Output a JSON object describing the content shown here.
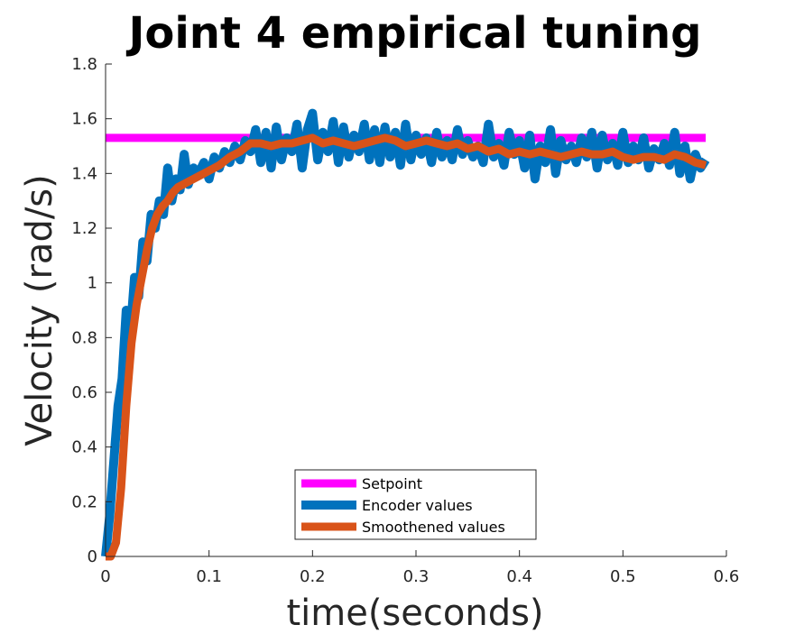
{
  "chart_data": {
    "type": "line",
    "title": "Joint 4 empirical tuning",
    "xlabel": "time(seconds)",
    "ylabel": "Velocity (rad/s)",
    "xlim": [
      0,
      0.6
    ],
    "ylim": [
      0,
      1.8
    ],
    "xticks": [
      0,
      0.1,
      0.2,
      0.3,
      0.4,
      0.5,
      0.6
    ],
    "xtick_labels": [
      "0",
      "0.1",
      "0.2",
      "0.3",
      "0.4",
      "0.5",
      "0.6"
    ],
    "yticks": [
      0,
      0.2,
      0.4,
      0.6,
      0.8,
      1.0,
      1.2,
      1.4,
      1.6,
      1.8
    ],
    "ytick_labels": [
      "0",
      "0.2",
      "0.4",
      "0.6",
      "0.8",
      "1",
      "1.2",
      "1.4",
      "1.6",
      "1.8"
    ],
    "grid": false,
    "legend": "bottom-center",
    "series": [
      {
        "name": "Setpoint",
        "color": "#ff00ff",
        "x": [
          0,
          0.58
        ],
        "y": [
          1.53,
          1.53
        ]
      },
      {
        "name": "Encoder values",
        "color": "#0072bd",
        "x": [
          0.0,
          0.004,
          0.008,
          0.012,
          0.016,
          0.02,
          0.024,
          0.028,
          0.032,
          0.036,
          0.04,
          0.044,
          0.048,
          0.052,
          0.056,
          0.06,
          0.064,
          0.068,
          0.072,
          0.076,
          0.08,
          0.085,
          0.09,
          0.095,
          0.1,
          0.105,
          0.11,
          0.115,
          0.12,
          0.125,
          0.13,
          0.135,
          0.14,
          0.145,
          0.15,
          0.155,
          0.16,
          0.165,
          0.17,
          0.175,
          0.18,
          0.185,
          0.19,
          0.195,
          0.2,
          0.205,
          0.21,
          0.215,
          0.22,
          0.225,
          0.23,
          0.235,
          0.24,
          0.245,
          0.25,
          0.255,
          0.26,
          0.265,
          0.27,
          0.275,
          0.28,
          0.285,
          0.29,
          0.295,
          0.3,
          0.305,
          0.31,
          0.315,
          0.32,
          0.325,
          0.33,
          0.335,
          0.34,
          0.345,
          0.35,
          0.355,
          0.36,
          0.365,
          0.37,
          0.375,
          0.38,
          0.385,
          0.39,
          0.395,
          0.4,
          0.405,
          0.41,
          0.415,
          0.42,
          0.425,
          0.43,
          0.435,
          0.44,
          0.445,
          0.45,
          0.455,
          0.46,
          0.465,
          0.47,
          0.475,
          0.48,
          0.485,
          0.49,
          0.495,
          0.5,
          0.505,
          0.51,
          0.515,
          0.52,
          0.525,
          0.53,
          0.535,
          0.54,
          0.545,
          0.55,
          0.555,
          0.56,
          0.565,
          0.57,
          0.575,
          0.58
        ],
        "y": [
          0.0,
          0.15,
          0.35,
          0.55,
          0.65,
          0.9,
          0.82,
          1.02,
          0.95,
          1.15,
          1.08,
          1.25,
          1.2,
          1.3,
          1.25,
          1.42,
          1.3,
          1.38,
          1.34,
          1.47,
          1.36,
          1.42,
          1.4,
          1.44,
          1.38,
          1.46,
          1.42,
          1.48,
          1.44,
          1.5,
          1.45,
          1.52,
          1.48,
          1.56,
          1.44,
          1.55,
          1.42,
          1.57,
          1.45,
          1.53,
          1.48,
          1.58,
          1.42,
          1.56,
          1.62,
          1.45,
          1.55,
          1.48,
          1.59,
          1.44,
          1.57,
          1.46,
          1.54,
          1.48,
          1.58,
          1.45,
          1.56,
          1.44,
          1.57,
          1.46,
          1.55,
          1.43,
          1.58,
          1.45,
          1.54,
          1.47,
          1.53,
          1.44,
          1.55,
          1.46,
          1.52,
          1.45,
          1.56,
          1.47,
          1.52,
          1.46,
          1.5,
          1.44,
          1.58,
          1.46,
          1.51,
          1.43,
          1.55,
          1.47,
          1.52,
          1.42,
          1.54,
          1.38,
          1.5,
          1.44,
          1.56,
          1.4,
          1.52,
          1.45,
          1.5,
          1.44,
          1.53,
          1.46,
          1.55,
          1.42,
          1.54,
          1.45,
          1.51,
          1.43,
          1.55,
          1.44,
          1.5,
          1.45,
          1.53,
          1.42,
          1.49,
          1.45,
          1.51,
          1.43,
          1.55,
          1.4,
          1.5,
          1.38,
          1.47,
          1.42,
          1.45
        ]
      },
      {
        "name": "Smoothened values",
        "color": "#d95319",
        "x": [
          0.0,
          0.005,
          0.01,
          0.015,
          0.02,
          0.025,
          0.03,
          0.035,
          0.04,
          0.045,
          0.05,
          0.055,
          0.06,
          0.065,
          0.07,
          0.075,
          0.08,
          0.09,
          0.1,
          0.11,
          0.12,
          0.13,
          0.14,
          0.15,
          0.16,
          0.17,
          0.18,
          0.19,
          0.2,
          0.21,
          0.22,
          0.23,
          0.24,
          0.25,
          0.26,
          0.27,
          0.28,
          0.29,
          0.3,
          0.31,
          0.32,
          0.33,
          0.34,
          0.35,
          0.36,
          0.37,
          0.38,
          0.39,
          0.4,
          0.41,
          0.42,
          0.43,
          0.44,
          0.45,
          0.46,
          0.47,
          0.48,
          0.49,
          0.5,
          0.51,
          0.52,
          0.53,
          0.54,
          0.55,
          0.56,
          0.57,
          0.58
        ],
        "y": [
          0.0,
          0.0,
          0.05,
          0.25,
          0.55,
          0.78,
          0.92,
          1.02,
          1.12,
          1.2,
          1.25,
          1.28,
          1.3,
          1.33,
          1.35,
          1.36,
          1.37,
          1.39,
          1.41,
          1.43,
          1.46,
          1.48,
          1.51,
          1.51,
          1.5,
          1.51,
          1.51,
          1.52,
          1.53,
          1.51,
          1.52,
          1.51,
          1.5,
          1.51,
          1.52,
          1.53,
          1.52,
          1.5,
          1.51,
          1.52,
          1.51,
          1.5,
          1.51,
          1.49,
          1.5,
          1.48,
          1.49,
          1.47,
          1.48,
          1.47,
          1.48,
          1.47,
          1.46,
          1.47,
          1.48,
          1.47,
          1.47,
          1.48,
          1.46,
          1.45,
          1.46,
          1.46,
          1.45,
          1.47,
          1.46,
          1.44,
          1.43
        ]
      }
    ]
  }
}
